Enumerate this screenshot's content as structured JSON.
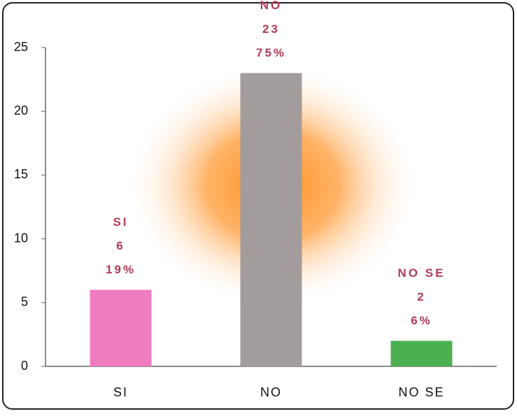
{
  "chart_data": {
    "type": "bar",
    "categories": [
      "SI",
      "NO",
      "NO SE"
    ],
    "values": [
      6,
      23,
      2
    ],
    "percent_labels": [
      "19%",
      "75%",
      "6%"
    ],
    "colors": [
      "#f07cc0",
      "#a39c9c",
      "#4cb050"
    ],
    "ylim": [
      0,
      25
    ],
    "yticks": [
      0,
      5,
      10,
      15,
      20,
      25
    ]
  }
}
